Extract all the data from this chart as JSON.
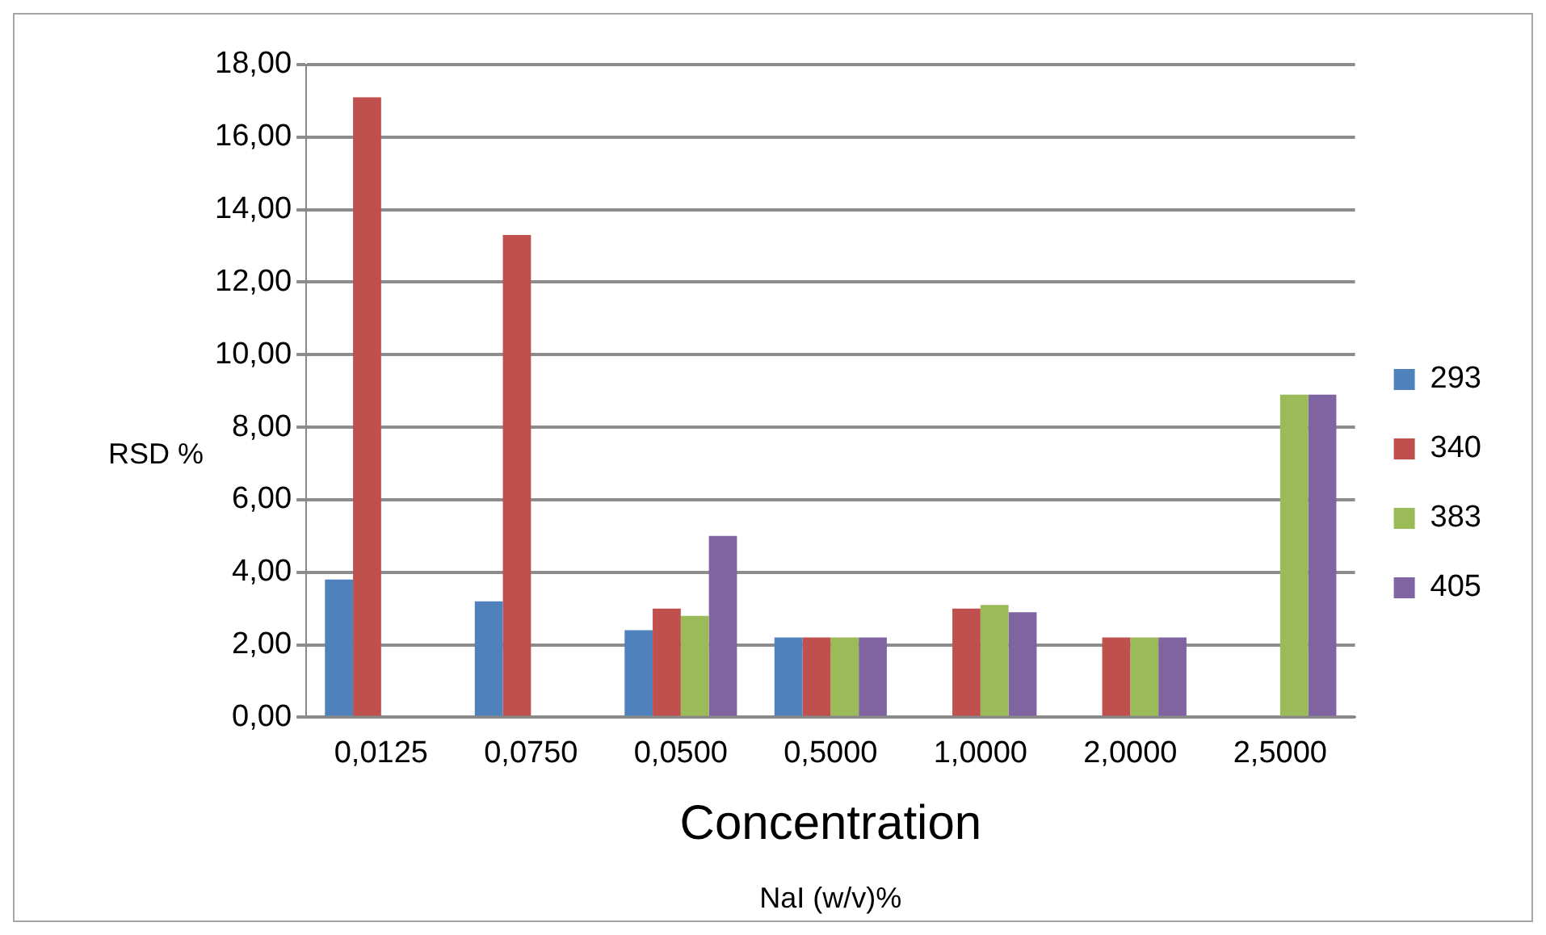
{
  "chart_data": {
    "type": "bar",
    "xlabel": "Concentration",
    "ylabel": "RSD %",
    "annotations": [
      "NaI (w/v)%"
    ],
    "categories": [
      "0,0125",
      "0,0750",
      "0,0500",
      "0,5000",
      "1,0000",
      "2,0000",
      "2,5000"
    ],
    "series": [
      {
        "name": "293",
        "color": "#4f81bd",
        "values": [
          3.8,
          3.2,
          2.4,
          2.2,
          0,
          0,
          0
        ]
      },
      {
        "name": "340",
        "color": "#c0504d",
        "values": [
          17.1,
          13.3,
          3.0,
          2.2,
          3.0,
          2.2,
          0
        ]
      },
      {
        "name": "383",
        "color": "#9bbb59",
        "values": [
          0,
          0,
          2.8,
          2.2,
          3.1,
          2.2,
          8.9
        ]
      },
      {
        "name": "405",
        "color": "#8064a2",
        "values": [
          0,
          0,
          5.0,
          2.2,
          2.9,
          2.2,
          8.9
        ]
      }
    ],
    "ylim": [
      0,
      18
    ],
    "yticks": [
      {
        "value": 0,
        "label": "0,00"
      },
      {
        "value": 2,
        "label": "2,00"
      },
      {
        "value": 4,
        "label": "4,00"
      },
      {
        "value": 6,
        "label": "6,00"
      },
      {
        "value": 8,
        "label": "8,00"
      },
      {
        "value": 10,
        "label": "10,00"
      },
      {
        "value": 12,
        "label": "12,00"
      },
      {
        "value": 14,
        "label": "14,00"
      },
      {
        "value": 16,
        "label": "16,00"
      },
      {
        "value": 18,
        "label": "18,00"
      }
    ],
    "grid": "y",
    "legend": "right"
  }
}
